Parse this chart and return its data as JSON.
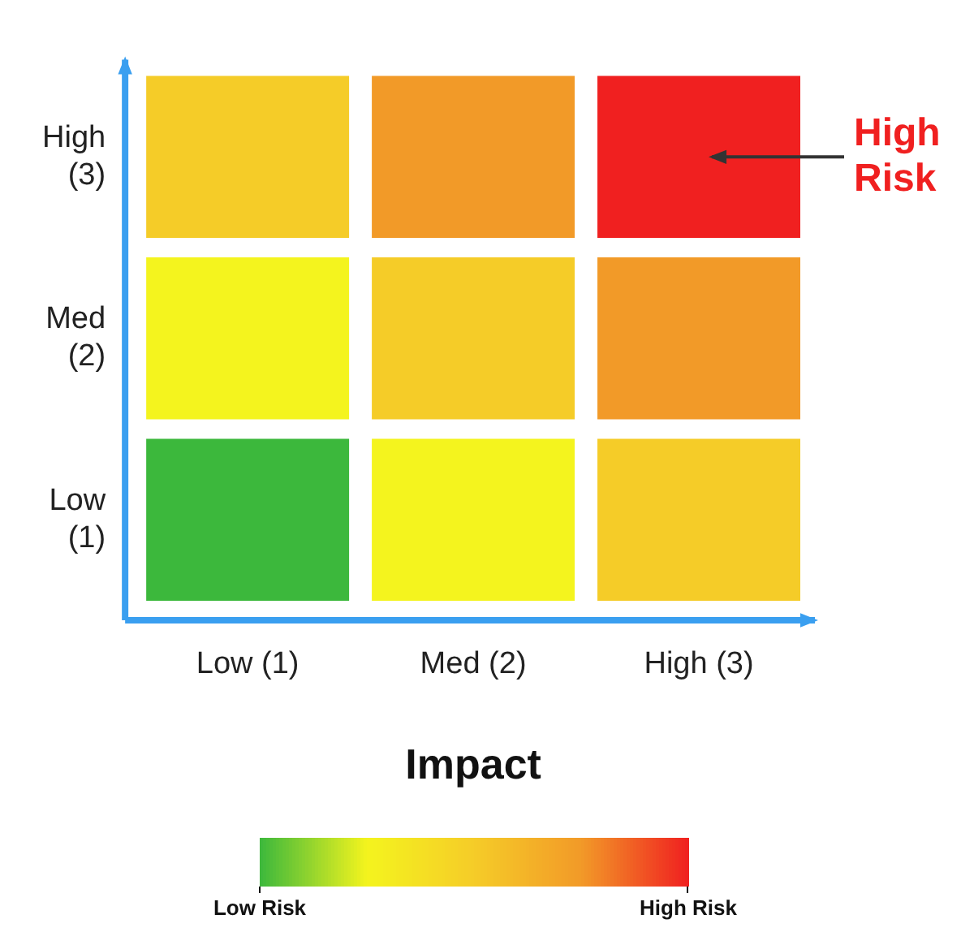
{
  "chart_data": {
    "type": "heatmap",
    "xlabel": "Impact",
    "categories": [
      "Low (1)",
      "Med (2)",
      "High (3)"
    ],
    "y_categories": [
      "High (3)",
      "Med (2)",
      "Low (1)"
    ],
    "cells": [
      [
        3,
        4,
        5
      ],
      [
        2,
        3,
        4
      ],
      [
        1,
        2,
        3
      ]
    ],
    "clim": [
      1,
      5
    ],
    "cticks": [
      {
        "value": 1,
        "label": "Low Risk"
      },
      {
        "value": 5,
        "label": "High Risk"
      }
    ],
    "colors": [
      "#3cb83c",
      "#f4f41e",
      "#f5cc28",
      "#f29a28",
      "#f02020"
    ],
    "annotations": [
      "High Risk"
    ]
  }
}
